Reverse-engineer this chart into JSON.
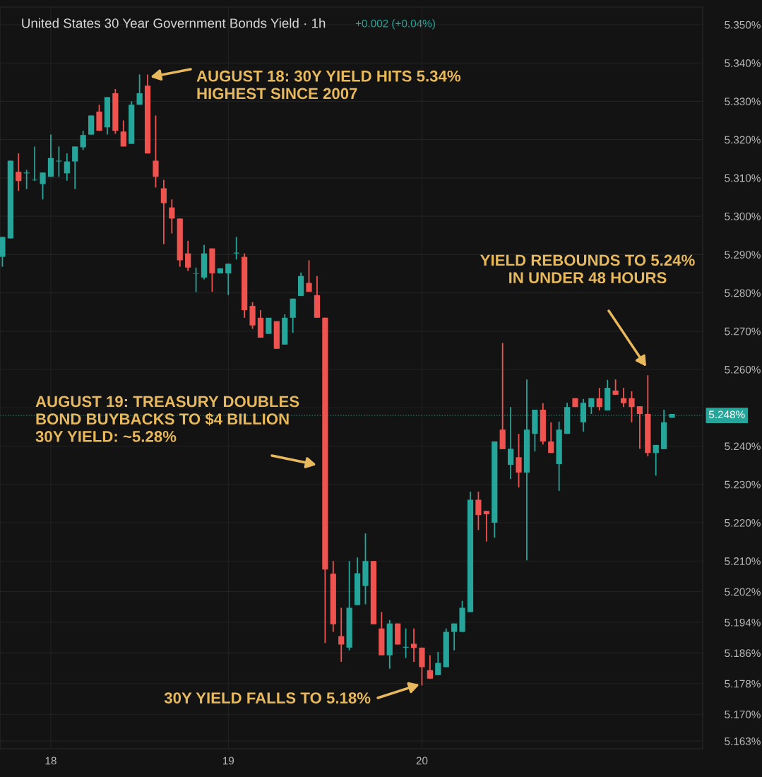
{
  "chart_data": {
    "type": "candlestick",
    "title": "United States 30 Year Government Bonds Yield · 1h",
    "categories": [
      null,
      null,
      null,
      null,
      null,
      null,
      "18",
      null,
      null,
      null,
      null,
      null,
      null,
      null,
      null,
      null,
      null,
      null,
      null,
      null,
      null,
      null,
      null,
      null,
      null,
      null,
      null,
      null,
      "19",
      null,
      null,
      null,
      null,
      null,
      null,
      null,
      null,
      null,
      null,
      null,
      null,
      null,
      null,
      null,
      null,
      null,
      null,
      null,
      null,
      null,
      null,
      null,
      "20",
      null,
      null,
      null,
      null,
      null,
      null,
      null,
      null,
      null,
      null,
      null,
      null,
      null,
      null,
      null,
      null,
      null,
      null,
      null,
      null,
      null,
      null,
      null,
      null,
      null,
      null,
      null,
      null,
      null,
      null,
      null
    ],
    "ohlc": [
      [
        5.2894,
        5.2946,
        5.2868,
        5.2946
      ],
      [
        5.2942,
        5.3145,
        5.2942,
        5.3145
      ],
      [
        5.3116,
        5.3164,
        5.3066,
        5.3092
      ],
      [
        5.3112,
        5.3121,
        5.3071,
        5.3114
      ],
      [
        5.3094,
        5.3182,
        5.3092,
        5.3095
      ],
      [
        5.3084,
        5.3114,
        5.3044,
        5.3114
      ],
      [
        5.3103,
        5.3213,
        5.3103,
        5.3152
      ],
      [
        5.3143,
        5.3182,
        5.3103,
        5.3145
      ],
      [
        5.3112,
        5.3164,
        5.3093,
        5.3143
      ],
      [
        5.3143,
        5.3182,
        5.3071,
        5.3182
      ],
      [
        5.318,
        5.3223,
        5.3173,
        5.3212
      ],
      [
        5.3213,
        5.3263,
        5.3213,
        5.3263
      ],
      [
        5.3273,
        5.3291,
        5.3223,
        5.3223
      ],
      [
        5.3232,
        5.3311,
        5.3213,
        5.3311
      ],
      [
        5.3321,
        5.3332,
        5.3215,
        5.3223
      ],
      [
        5.3221,
        5.325,
        5.3182,
        5.3182
      ],
      [
        5.3189,
        5.33,
        5.3189,
        5.3291
      ],
      [
        5.3291,
        5.337,
        5.3291,
        5.3321
      ],
      [
        5.3341,
        5.337,
        5.3164,
        5.3164
      ],
      [
        5.3145,
        5.3263,
        5.3075,
        5.3103
      ],
      [
        5.3073,
        5.3095,
        5.2927,
        5.3034
      ],
      [
        5.3023,
        5.3044,
        5.2955,
        5.2994
      ],
      [
        5.2994,
        5.2994,
        5.2868,
        5.2885
      ],
      [
        5.2903,
        5.2936,
        5.2857,
        5.2866
      ],
      [
        5.2849,
        5.2866,
        5.2802,
        5.285
      ],
      [
        5.284,
        5.2925,
        5.2835,
        5.2903
      ],
      [
        5.2916,
        5.2916,
        5.2803,
        5.2851
      ],
      [
        5.2851,
        5.2864,
        5.2851,
        5.2864
      ],
      [
        5.2851,
        5.2876,
        5.2794,
        5.2876
      ],
      [
        5.2903,
        5.2946,
        5.2887,
        5.2905
      ],
      [
        5.2894,
        5.2903,
        5.2735,
        5.2755
      ],
      [
        5.2766,
        5.2776,
        5.2706,
        5.2715
      ],
      [
        5.2735,
        5.2755,
        5.2683,
        5.2683
      ],
      [
        5.2693,
        5.2735,
        5.2693,
        5.2735
      ],
      [
        5.2726,
        5.2726,
        5.2654,
        5.2654
      ],
      [
        5.2665,
        5.2744,
        5.2665,
        5.2735
      ],
      [
        5.2735,
        5.2785,
        5.2696,
        5.2785
      ],
      [
        5.2792,
        5.2853,
        5.2792,
        5.2844
      ],
      [
        5.2826,
        5.2885,
        5.2803,
        5.2803
      ],
      [
        5.2794,
        5.2844,
        5.2735,
        5.2735
      ],
      [
        5.2735,
        5.2735,
        5.1886,
        5.2078
      ],
      [
        5.2067,
        5.21,
        5.1915,
        5.1935
      ],
      [
        5.1904,
        5.1978,
        5.1837,
        5.1882
      ],
      [
        5.1874,
        5.21,
        5.1867,
        5.1978
      ],
      [
        5.1985,
        5.2109,
        5.1985,
        5.2068
      ],
      [
        5.2035,
        5.2172,
        5.1987,
        5.21
      ],
      [
        5.21,
        5.21,
        5.1935,
        5.1935
      ],
      [
        5.1924,
        5.1967,
        5.1854,
        5.1854
      ],
      [
        5.1854,
        5.1946,
        5.1819,
        5.1937
      ],
      [
        5.1937,
        5.1937,
        5.1882,
        5.1882
      ],
      [
        5.1874,
        5.1924,
        5.1847,
        5.1876
      ],
      [
        5.1884,
        5.1924,
        5.1837,
        5.1873
      ],
      [
        5.1874,
        5.1874,
        5.1775,
        5.1823
      ],
      [
        5.1815,
        5.1854,
        5.1793,
        5.1793
      ],
      [
        5.1802,
        5.1863,
        5.1802,
        5.1834
      ],
      [
        5.1823,
        5.1924,
        5.1823,
        5.1915
      ],
      [
        5.1915,
        5.1937,
        5.1867,
        5.1937
      ],
      [
        5.1915,
        5.1996,
        5.1915,
        5.1978
      ],
      [
        5.1967,
        5.2281,
        5.1967,
        5.226
      ],
      [
        5.226,
        5.2281,
        5.2181,
        5.222
      ],
      [
        5.2231,
        5.2231,
        5.2151,
        5.2222
      ],
      [
        5.22,
        5.2412,
        5.2161,
        5.2412
      ],
      [
        5.2443,
        5.2669,
        5.2392,
        5.2392
      ],
      [
        5.2351,
        5.2502,
        5.2314,
        5.2393
      ],
      [
        5.2371,
        5.2432,
        5.2292,
        5.2331
      ],
      [
        5.2331,
        5.2574,
        5.2102,
        5.2443
      ],
      [
        5.2432,
        5.2495,
        5.2386,
        5.2495
      ],
      [
        5.2495,
        5.2512,
        5.2404,
        5.2412
      ],
      [
        5.2412,
        5.2462,
        5.2382,
        5.2382
      ],
      [
        5.2353,
        5.2464,
        5.2283,
        5.2443
      ],
      [
        5.2432,
        5.2513,
        5.2432,
        5.2502
      ],
      [
        5.2525,
        5.2525,
        5.2502,
        5.2502
      ],
      [
        5.2462,
        5.2523,
        5.2438,
        5.2513
      ],
      [
        5.2502,
        5.2525,
        5.2484,
        5.2525
      ],
      [
        5.2525,
        5.2552,
        5.2493,
        5.2502
      ],
      [
        5.2493,
        5.2573,
        5.2493,
        5.2552
      ],
      [
        5.2545,
        5.2574,
        5.2534,
        5.2534
      ],
      [
        5.2525,
        5.2552,
        5.2502,
        5.2512
      ],
      [
        5.2525,
        5.2543,
        5.2462,
        5.2502
      ],
      [
        5.2504,
        5.2504,
        5.2393,
        5.2484
      ],
      [
        5.2484,
        5.2585,
        5.2373,
        5.2382
      ],
      [
        5.2382,
        5.2403,
        5.2323,
        5.2403
      ],
      [
        5.2392,
        5.2495,
        5.2392,
        5.2462
      ],
      [
        5.2474,
        5.2484,
        5.2474,
        5.2484
      ]
    ],
    "colors": [
      "#26a69a",
      "#26a69a",
      "#ef5350",
      "#26a69a",
      "#26a69a",
      "#26a69a",
      "#26a69a",
      "#26a69a",
      "#26a69a",
      "#26a69a",
      "#26a69a",
      "#26a69a",
      "#ef5350",
      "#26a69a",
      "#ef5350",
      "#ef5350",
      "#26a69a",
      "#26a69a",
      "#ef5350",
      "#ef5350",
      "#ef5350",
      "#ef5350",
      "#ef5350",
      "#ef5350",
      "#26a69a",
      "#26a69a",
      "#ef5350",
      "#26a69a",
      "#26a69a",
      "#26a69a",
      "#ef5350",
      "#ef5350",
      "#ef5350",
      "#26a69a",
      "#ef5350",
      "#26a69a",
      "#26a69a",
      "#26a69a",
      "#ef5350",
      "#ef5350",
      "#ef5350",
      "#ef5350",
      "#ef5350",
      "#26a69a",
      "#26a69a",
      "#26a69a",
      "#ef5350",
      "#ef5350",
      "#26a69a",
      "#ef5350",
      "#26a69a",
      "#ef5350",
      "#ef5350",
      "#ef5350",
      "#26a69a",
      "#26a69a",
      "#26a69a",
      "#26a69a",
      "#26a69a",
      "#ef5350",
      "#ef5350",
      "#26a69a",
      "#ef5350",
      "#26a69a",
      "#ef5350",
      "#26a69a",
      "#26a69a",
      "#ef5350",
      "#ef5350",
      "#26a69a",
      "#26a69a",
      "#ef5350",
      "#26a69a",
      "#26a69a",
      "#ef5350",
      "#26a69a",
      "#ef5350",
      "#ef5350",
      "#ef5350",
      "#ef5350",
      "#ef5350",
      "#26a69a",
      "#26a69a",
      "#26a69a"
    ],
    "ylim": [
      5.161,
      5.3546
    ],
    "yticks": [
      {
        "value": 5.35,
        "label": "5.350%"
      },
      {
        "value": 5.34,
        "label": "5.340%"
      },
      {
        "value": 5.33,
        "label": "5.330%"
      },
      {
        "value": 5.32,
        "label": "5.320%"
      },
      {
        "value": 5.31,
        "label": "5.310%"
      },
      {
        "value": 5.3,
        "label": "5.300%"
      },
      {
        "value": 5.29,
        "label": "5.290%"
      },
      {
        "value": 5.28,
        "label": "5.280%"
      },
      {
        "value": 5.27,
        "label": "5.270%"
      },
      {
        "value": 5.26,
        "label": "5.260%"
      },
      {
        "value": 5.25,
        "label": null
      },
      {
        "value": 5.24,
        "label": "5.240%"
      },
      {
        "value": 5.23,
        "label": "5.230%"
      },
      {
        "value": 5.22,
        "label": "5.220%"
      },
      {
        "value": 5.21,
        "label": "5.210%"
      },
      {
        "value": 5.202,
        "label": "5.202%"
      },
      {
        "value": 5.194,
        "label": "5.194%"
      },
      {
        "value": 5.186,
        "label": "5.186%"
      },
      {
        "value": 5.178,
        "label": "5.178%"
      },
      {
        "value": 5.17,
        "label": "5.170%"
      },
      {
        "value": 5.163,
        "label": "5.163%"
      }
    ],
    "grid": true,
    "ref_lines": [
      {
        "axis": "y",
        "value": 5.248,
        "label": "5.248%",
        "color": "#26a69a",
        "line_style": "dotted"
      }
    ],
    "annotations": [
      "+0.002 (+0.04%)",
      "AUGUST 18: 30Y YIELD HITS 5.34%\nHIGHEST SINCE 2007",
      "AUGUST 19: TREASURY DOUBLES\nBOND BUYBACKS TO $4 BILLION\n30Y YIELD: ~5.28%",
      "30Y YIELD FALLS TO 5.18%",
      "YIELD REBOUNDS TO 5.24%\nIN UNDER 48 HOURS"
    ]
  }
}
